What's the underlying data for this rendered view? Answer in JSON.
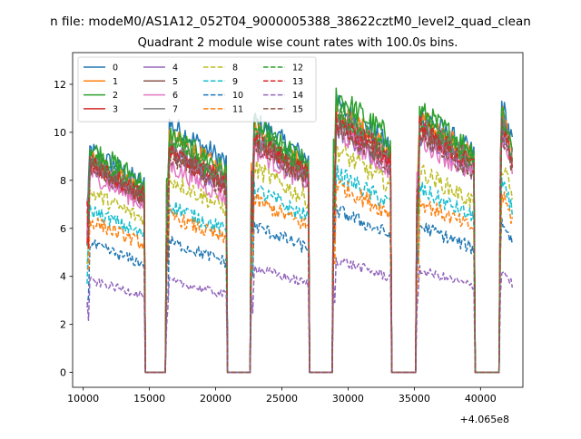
{
  "figure": {
    "suptitle": "n file: modeM0/AS1A12_052T04_9000005388_38622cztM0_level2_quad_clean"
  },
  "chart_data": {
    "type": "line",
    "title": "Quadrant 2 module wise count rates with 100.0s bins.",
    "xlabel": "",
    "ylabel": "",
    "x_offset_label": "+4.065e8",
    "xlim": [
      9200,
      43200
    ],
    "ylim": [
      -0.62,
      13.32
    ],
    "x_ticks": [
      10000,
      15000,
      20000,
      25000,
      30000,
      35000,
      40000
    ],
    "x_tick_labels": [
      "10000",
      "15000",
      "20000",
      "25000",
      "30000",
      "35000",
      "40000"
    ],
    "y_ticks": [
      0,
      2,
      4,
      6,
      8,
      10,
      12
    ],
    "y_tick_labels": [
      "0",
      "2",
      "4",
      "6",
      "8",
      "10",
      "12"
    ],
    "grid": false,
    "legend_position": "top-left",
    "legend_columns": 4,
    "segments": [
      {
        "start": 10300,
        "end": 14600
      },
      {
        "start": 16300,
        "end": 20800
      },
      {
        "start": 22700,
        "end": 27000
      },
      {
        "start": 28900,
        "end": 33200
      },
      {
        "start": 35200,
        "end": 39500
      },
      {
        "start": 41500,
        "end": 42400
      }
    ],
    "series": [
      {
        "name": "0",
        "style": "solid",
        "color": "#1f77b4",
        "levels": [
          8.5,
          9.5,
          9.6,
          10.2,
          9.9,
          10.4
        ]
      },
      {
        "name": "1",
        "style": "solid",
        "color": "#ff7f0e",
        "levels": [
          8.2,
          9.0,
          9.2,
          10.0,
          9.7,
          10.0
        ]
      },
      {
        "name": "2",
        "style": "solid",
        "color": "#2ca02c",
        "levels": [
          8.6,
          9.1,
          9.4,
          10.6,
          10.0,
          10.2
        ]
      },
      {
        "name": "3",
        "style": "solid",
        "color": "#d62728",
        "levels": [
          8.0,
          8.6,
          8.9,
          9.7,
          9.4,
          9.7
        ]
      },
      {
        "name": "4",
        "style": "solid",
        "color": "#9467bd",
        "levels": [
          7.8,
          8.4,
          8.7,
          9.3,
          9.1,
          9.4
        ]
      },
      {
        "name": "5",
        "style": "solid",
        "color": "#8c564b",
        "levels": [
          7.9,
          8.5,
          8.8,
          9.5,
          9.2,
          9.5
        ]
      },
      {
        "name": "6",
        "style": "solid",
        "color": "#e377c2",
        "levels": [
          7.6,
          7.9,
          8.5,
          9.2,
          8.9,
          9.2
        ]
      },
      {
        "name": "7",
        "style": "solid",
        "color": "#7f7f7f",
        "levels": [
          8.1,
          8.7,
          9.0,
          9.8,
          9.5,
          9.8
        ]
      },
      {
        "name": "8",
        "style": "dashed",
        "color": "#bcbd22",
        "levels": [
          6.9,
          7.4,
          7.8,
          8.5,
          7.7,
          8.0
        ]
      },
      {
        "name": "9",
        "style": "dashed",
        "color": "#17becf",
        "levels": [
          6.2,
          6.4,
          7.0,
          7.6,
          7.0,
          7.3
        ]
      },
      {
        "name": "10",
        "style": "dashed",
        "color": "#1f77b4",
        "levels": [
          4.9,
          5.0,
          5.6,
          6.2,
          5.6,
          5.9
        ]
      },
      {
        "name": "11",
        "style": "dashed",
        "color": "#ff7f0e",
        "levels": [
          5.8,
          6.0,
          6.6,
          7.2,
          6.5,
          6.9
        ]
      },
      {
        "name": "12",
        "style": "dashed",
        "color": "#2ca02c",
        "levels": [
          8.3,
          8.8,
          9.2,
          10.0,
          9.6,
          9.9
        ]
      },
      {
        "name": "13",
        "style": "dashed",
        "color": "#d62728",
        "levels": [
          8.0,
          8.4,
          8.9,
          9.6,
          9.3,
          9.6
        ]
      },
      {
        "name": "14",
        "style": "dashed",
        "color": "#9467bd",
        "levels": [
          3.5,
          3.5,
          4.0,
          4.3,
          3.9,
          4.0
        ]
      },
      {
        "name": "15",
        "style": "dashed",
        "color": "#8c564b",
        "levels": [
          7.9,
          8.3,
          8.7,
          9.4,
          9.1,
          9.4
        ]
      }
    ]
  }
}
